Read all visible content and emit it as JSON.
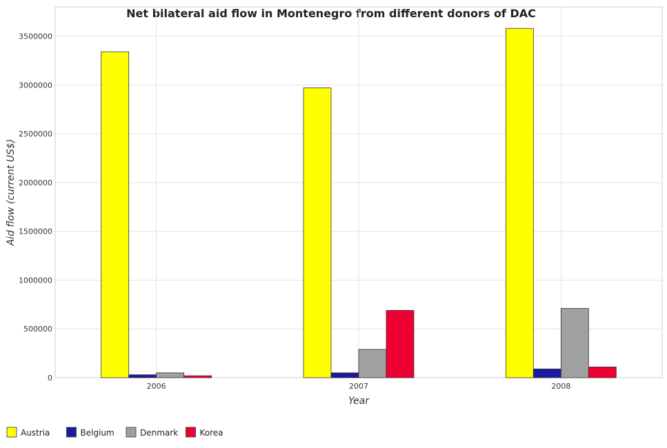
{
  "chart_data": {
    "type": "bar",
    "title": "Net bilateral aid flow in Montenegro from different donors of DAC",
    "xlabel": "Year",
    "ylabel": "Aid flow (current US$)",
    "categories": [
      "2006",
      "2007",
      "2008"
    ],
    "ylim": [
      0,
      3800000
    ],
    "yticks": [
      0,
      500000,
      1000000,
      1500000,
      2000000,
      2500000,
      3000000,
      3500000
    ],
    "ytick_labels": [
      "0",
      "500000",
      "1000000",
      "1500000",
      "2000000",
      "2500000",
      "3000000",
      "3500000"
    ],
    "grid": true,
    "legend_position": "bottom-left",
    "series": [
      {
        "name": "Austria",
        "color": "#ffff00",
        "values": [
          3340000,
          2970000,
          3580000
        ]
      },
      {
        "name": "Belgium",
        "color": "#1a1aa0",
        "values": [
          30000,
          50000,
          90000
        ]
      },
      {
        "name": "Denmark",
        "color": "#a0a0a0",
        "values": [
          50000,
          290000,
          710000
        ]
      },
      {
        "name": "Korea",
        "color": "#ee0033",
        "values": [
          20000,
          690000,
          110000
        ]
      }
    ]
  }
}
